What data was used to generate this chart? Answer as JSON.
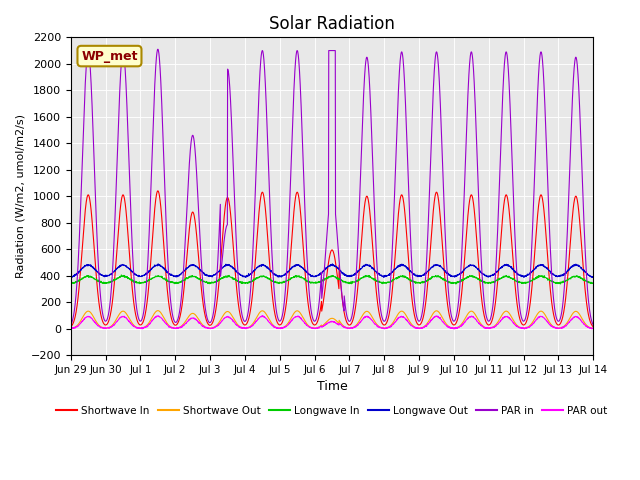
{
  "title": "Solar Radiation",
  "ylabel": "Radiation (W/m2, umol/m2/s)",
  "xlabel": "Time",
  "ylim": [
    -200,
    2200
  ],
  "yticks": [
    -200,
    0,
    200,
    400,
    600,
    800,
    1000,
    1200,
    1400,
    1600,
    1800,
    2000,
    2200
  ],
  "plot_bg": "#e8e8e8",
  "legend_label": "WP_met",
  "series_colors": {
    "sw_in": "#ff0000",
    "sw_out": "#ffa500",
    "lw_in": "#00cc00",
    "lw_out": "#0000cc",
    "par_in": "#9900cc",
    "par_out": "#ff00ff"
  },
  "series_names": {
    "sw_in": "Shortwave In",
    "sw_out": "Shortwave Out",
    "lw_in": "Longwave In",
    "lw_out": "Longwave Out",
    "par_in": "PAR in",
    "par_out": "PAR out"
  },
  "x_tick_labels": [
    "Jun 29",
    "Jun 30",
    "Jul 1",
    "Jul 2",
    "Jul 3",
    "Jul 4",
    "Jul 5",
    "Jul 6",
    "Jul 7",
    "Jul 8",
    "Jul 9",
    "Jul 10",
    "Jul 11",
    "Jul 12",
    "Jul 13",
    "Jul 14"
  ],
  "n_days": 15,
  "pts_per_day": 144
}
